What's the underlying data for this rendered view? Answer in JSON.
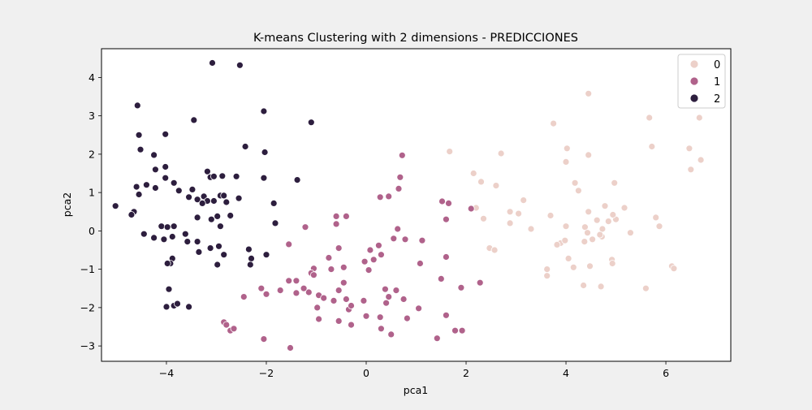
{
  "chart_data": {
    "type": "scatter",
    "title": "K-means Clustering with 2 dimensions - PREDICCIONES",
    "xlabel": "pca1",
    "ylabel": "pca2",
    "xlim": [
      -5.3,
      7.3
    ],
    "ylim": [
      -3.4,
      4.75
    ],
    "x_ticks": [
      -4,
      -2,
      0,
      2,
      4,
      6
    ],
    "x_tick_labels": [
      "−4",
      "−2",
      "0",
      "2",
      "4",
      "6"
    ],
    "y_ticks": [
      -3,
      -2,
      -1,
      0,
      1,
      2,
      3,
      4
    ],
    "y_tick_labels": [
      "−3",
      "−2",
      "−1",
      "0",
      "1",
      "2",
      "3",
      "4"
    ],
    "grid": false,
    "legend": {
      "placement": "top-right",
      "entries": [
        {
          "label": "0",
          "color": "#ecd0c9"
        },
        {
          "label": "1",
          "color": "#b0628b"
        },
        {
          "label": "2",
          "color": "#2d1e3e"
        }
      ]
    },
    "series": [
      {
        "name": "0",
        "color": "#ecd0c9",
        "x": [
          4.45,
          5.67,
          6.67,
          3.75,
          4.02,
          4.45,
          1.67,
          2.7,
          5.72,
          6.47,
          6.7,
          4.0,
          2.15,
          2.3,
          4.97,
          6.5,
          2.6,
          4.18,
          4.25,
          3.15,
          2.2,
          4.45,
          4.78,
          5.17,
          2.35,
          2.88,
          3.05,
          4.62,
          5.0,
          3.69,
          1.6,
          4.0,
          4.38,
          5.8,
          4.94,
          2.88,
          4.43,
          4.73,
          5.29,
          5.87,
          4.53,
          4.37,
          3.89,
          3.82,
          2.47,
          2.57,
          4.92,
          4.05,
          4.15,
          4.48,
          4.72,
          4.93,
          6.12,
          6.16,
          3.62,
          3.62,
          4.35,
          4.7,
          5.6,
          3.3,
          4.85,
          4.68,
          3.98
        ],
        "y": [
          3.58,
          2.95,
          2.95,
          2.8,
          2.15,
          1.98,
          2.07,
          2.02,
          2.2,
          2.15,
          1.85,
          1.8,
          1.5,
          1.28,
          1.25,
          1.6,
          1.18,
          1.25,
          1.05,
          0.8,
          0.6,
          0.5,
          0.65,
          0.6,
          0.32,
          0.5,
          0.45,
          0.28,
          0.3,
          0.4,
          0.3,
          0.12,
          0.1,
          0.35,
          0.42,
          0.2,
          -0.05,
          0.05,
          -0.05,
          0.12,
          -0.22,
          -0.28,
          -0.32,
          -0.36,
          -0.45,
          -0.5,
          -0.75,
          -0.72,
          -0.95,
          -0.92,
          -0.15,
          -0.85,
          -0.92,
          -0.98,
          -1.0,
          -1.17,
          -1.42,
          -1.45,
          -1.5,
          0.05,
          0.25,
          -0.1,
          -0.25
        ]
      },
      {
        "name": "1",
        "color": "#b0628b",
        "x": [
          0.72,
          0.68,
          0.65,
          0.28,
          0.45,
          1.52,
          1.65,
          2.1,
          1.6,
          0.63,
          -0.6,
          -0.4,
          -1.22,
          -0.6,
          0.55,
          0.25,
          0.08,
          -0.75,
          -0.55,
          -1.55,
          1.12,
          0.78,
          -1.05,
          -0.7,
          -0.45,
          0.15,
          0.3,
          1.08,
          1.6,
          -1.55,
          -1.1,
          -1.4,
          -1.15,
          -1.05,
          -1.25,
          -0.95,
          -0.85,
          -0.45,
          -0.65,
          -0.35,
          0.0,
          0.28,
          0.45,
          0.6,
          0.4,
          0.75,
          1.5,
          1.9,
          2.28,
          -2.1,
          -2.45,
          -1.72,
          -2.0,
          -1.4,
          -0.98,
          -0.55,
          -0.3,
          -0.05,
          0.3,
          0.5,
          0.82,
          1.05,
          1.92,
          1.6,
          1.42,
          1.78,
          -0.95,
          -0.3,
          -0.55,
          -0.4,
          -2.72,
          -2.65,
          -2.85,
          -2.8,
          -2.05,
          -1.52,
          0.38,
          0.05,
          -0.03
        ],
        "y": [
          1.97,
          1.4,
          1.1,
          0.88,
          0.9,
          0.77,
          0.72,
          0.58,
          0.3,
          0.05,
          0.38,
          0.38,
          0.1,
          0.18,
          -0.2,
          -0.38,
          -0.5,
          -0.7,
          -0.45,
          -0.35,
          -0.25,
          -0.22,
          -0.98,
          -1.0,
          -0.95,
          -0.75,
          -0.62,
          -0.85,
          -0.68,
          -1.3,
          -1.1,
          -1.62,
          -1.6,
          -1.15,
          -1.5,
          -1.68,
          -1.75,
          -1.35,
          -1.82,
          -2.05,
          -2.22,
          -2.25,
          -1.72,
          -1.55,
          -1.88,
          -1.78,
          -1.25,
          -1.48,
          -1.35,
          -1.5,
          -1.72,
          -1.55,
          -1.65,
          -1.3,
          -2.0,
          -1.55,
          -1.95,
          -1.82,
          -2.55,
          -2.7,
          -2.28,
          -2.02,
          -2.6,
          -2.2,
          -2.8,
          -2.6,
          -2.3,
          -2.45,
          -2.35,
          -1.78,
          -2.6,
          -2.55,
          -2.38,
          -2.45,
          -2.82,
          -3.05,
          -1.52,
          -1.02,
          -0.8
        ],
        "x_extra": [],
        "y_extra": []
      },
      {
        "name": "2",
        "color": "#2d1e3e",
        "x": [
          -3.08,
          -2.53,
          -4.58,
          -3.45,
          -2.05,
          -1.1,
          -4.55,
          -4.02,
          -4.52,
          -2.42,
          -2.03,
          -4.25,
          -4.02,
          -4.22,
          -3.18,
          -3.12,
          -3.05,
          -2.88,
          -2.6,
          -2.05,
          -1.38,
          -4.02,
          -4.4,
          -4.22,
          -3.85,
          -3.75,
          -3.48,
          -3.38,
          -3.55,
          -4.6,
          -4.55,
          -3.25,
          -3.05,
          -2.92,
          -2.85,
          -2.55,
          -2.8,
          -3.18,
          -3.28,
          -1.85,
          -4.65,
          -4.7,
          -5.02,
          -4.1,
          -3.98,
          -3.85,
          -3.38,
          -3.1,
          -2.98,
          -2.72,
          -2.72,
          -2.92,
          -4.45,
          -4.25,
          -4.05,
          -3.88,
          -3.62,
          -3.38,
          -3.58,
          -3.12,
          -2.95,
          -2.35,
          -2.85,
          -2.3,
          -2.32,
          -2.0,
          -1.82,
          -3.88,
          -3.92,
          -3.98,
          -3.95,
          -3.85,
          -3.55,
          -4.0,
          -3.35,
          -2.98,
          -3.78
        ],
        "y": [
          4.38,
          4.32,
          3.27,
          2.89,
          3.12,
          2.83,
          2.5,
          2.52,
          2.12,
          2.2,
          2.05,
          1.98,
          1.67,
          1.6,
          1.55,
          1.4,
          1.42,
          1.43,
          1.42,
          1.38,
          1.33,
          1.38,
          1.2,
          1.12,
          1.25,
          1.05,
          1.08,
          0.82,
          0.88,
          1.15,
          0.95,
          0.9,
          0.78,
          0.92,
          0.92,
          0.85,
          0.75,
          0.78,
          0.72,
          0.72,
          0.5,
          0.42,
          0.65,
          0.12,
          0.1,
          0.12,
          0.35,
          0.3,
          0.38,
          0.38,
          0.4,
          0.12,
          -0.08,
          -0.18,
          -0.22,
          -0.15,
          -0.08,
          -0.28,
          -0.28,
          -0.45,
          -0.4,
          -0.48,
          -0.62,
          -0.72,
          -0.88,
          -0.62,
          0.2,
          -0.72,
          -0.85,
          -0.85,
          -1.52,
          -1.95,
          -1.98,
          -1.98,
          -0.55,
          -0.88,
          -1.9
        ],
        "x_extra": [],
        "y_extra": []
      }
    ]
  }
}
